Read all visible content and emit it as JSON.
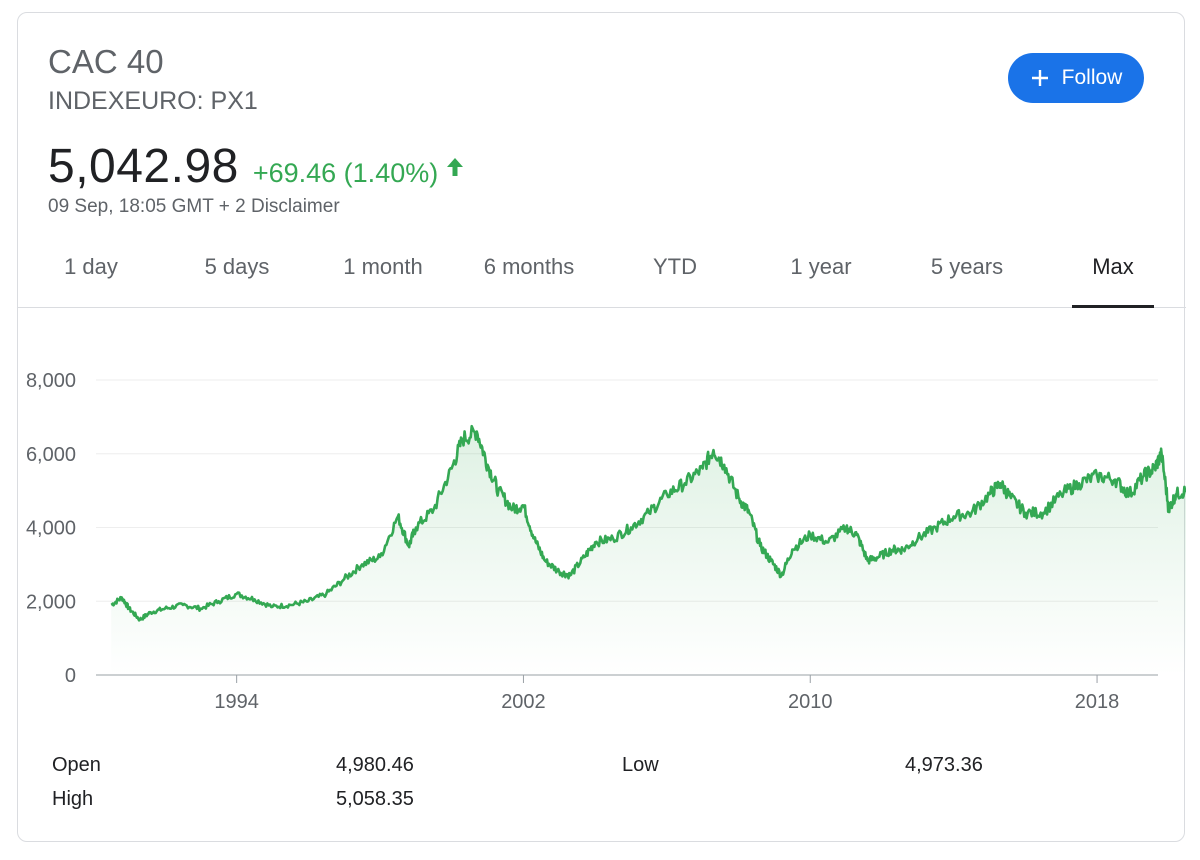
{
  "header": {
    "title": "CAC 40",
    "ticker": "INDEXEURO: PX1",
    "price": "5,042.98",
    "change": "+69.46 (1.40%)",
    "timestamp": "09 Sep, 18:05 GMT + 2 Disclaimer",
    "follow_label": "Follow",
    "accent_color": "#1a73e8",
    "positive_color": "#34a853"
  },
  "tabs": [
    {
      "label": "1 day"
    },
    {
      "label": "5 days"
    },
    {
      "label": "1 month"
    },
    {
      "label": "6 months"
    },
    {
      "label": "YTD"
    },
    {
      "label": "1 year"
    },
    {
      "label": "5 years"
    },
    {
      "label": "Max",
      "active": true
    }
  ],
  "chart_data": {
    "type": "area",
    "ylim": [
      0,
      8000
    ],
    "yticks": [
      0,
      2000,
      4000,
      6000,
      8000
    ],
    "ytick_labels": [
      "0",
      "2,000",
      "4,000",
      "6,000",
      "8,000"
    ],
    "xlim": [
      1990.3,
      2019.7
    ],
    "xticks": [
      1994,
      2002,
      2010,
      2018
    ],
    "xtick_labels": [
      "1994",
      "2002",
      "2010",
      "2018"
    ],
    "grid": true,
    "line_color": "#34a853",
    "x": [
      1990.5,
      1990.8,
      1991.0,
      1991.3,
      1991.6,
      1992.0,
      1992.5,
      1993.0,
      1993.5,
      1994.0,
      1994.5,
      1995.0,
      1995.5,
      1996.0,
      1996.5,
      1997.0,
      1997.5,
      1998.0,
      1998.5,
      1998.8,
      1999.0,
      1999.5,
      2000.0,
      2000.3,
      2000.7,
      2001.0,
      2001.3,
      2001.7,
      2002.0,
      2002.3,
      2002.6,
      2003.0,
      2003.3,
      2003.7,
      2004.0,
      2004.5,
      2005.0,
      2005.5,
      2006.0,
      2006.5,
      2007.0,
      2007.3,
      2007.6,
      2008.0,
      2008.3,
      2008.6,
      2008.9,
      2009.2,
      2009.5,
      2010.0,
      2010.5,
      2011.0,
      2011.3,
      2011.6,
      2011.9,
      2012.3,
      2012.6,
      2013.0,
      2013.5,
      2014.0,
      2014.5,
      2015.0,
      2015.3,
      2015.6,
      2016.0,
      2016.5,
      2017.0,
      2017.5,
      2018.0,
      2018.5,
      2018.9,
      2019.3,
      2019.6,
      2019.8,
      2020.0,
      2020.2,
      2020.5,
      2020.7
    ],
    "y": [
      1900,
      2100,
      1800,
      1500,
      1700,
      1800,
      1900,
      1800,
      2000,
      2200,
      2050,
      1850,
      1900,
      2000,
      2200,
      2600,
      3000,
      3200,
      4300,
      3500,
      4000,
      4500,
      5600,
      6400,
      6600,
      5700,
      5000,
      4500,
      4600,
      3700,
      3100,
      2800,
      2700,
      3200,
      3600,
      3700,
      4000,
      4400,
      4900,
      5200,
      5600,
      6100,
      5700,
      4800,
      4400,
      3500,
      3100,
      2700,
      3400,
      3800,
      3600,
      4000,
      3800,
      3100,
      3200,
      3400,
      3400,
      3700,
      4000,
      4300,
      4400,
      4900,
      5200,
      4800,
      4400,
      4400,
      4900,
      5200,
      5400,
      5300,
      4900,
      5400,
      5600,
      6000,
      4500,
      4900,
      5000,
      5042.98
    ]
  },
  "stats": {
    "open_label": "Open",
    "open_value": "4,980.46",
    "high_label": "High",
    "high_value": "5,058.35",
    "low_label": "Low",
    "low_value": "4,973.36"
  }
}
